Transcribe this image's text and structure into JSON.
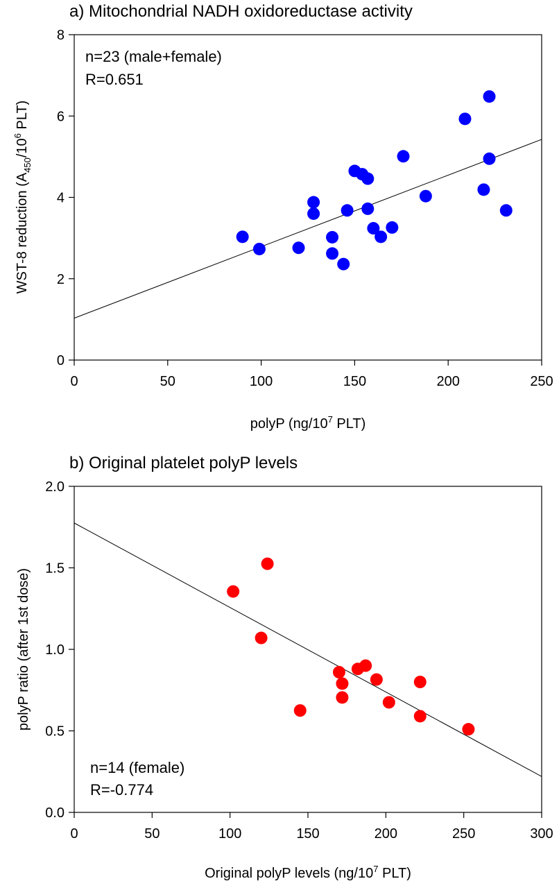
{
  "chart_data": [
    {
      "type": "scatter",
      "title": "a) Mitochondrial NADH oxidoreductase activity",
      "xlabel": {
        "main": "polyP (ng/10",
        "sup": "7",
        "tail": " PLT)"
      },
      "ylabel": {
        "main": "WST-8 reduction (A",
        "sub": "450",
        "mid": "/10",
        "sup": "6",
        "tail": " PLT)"
      },
      "xlim": [
        0,
        250
      ],
      "ylim": [
        0,
        8
      ],
      "xticks": [
        0,
        50,
        100,
        150,
        200,
        250
      ],
      "yticks": [
        0,
        2,
        4,
        6,
        8
      ],
      "annotations": [
        "n=23 (male+female)",
        "R=0.651"
      ],
      "marker_color": "#0000ff",
      "regression": {
        "intercept": 1.03,
        "slope": 0.01758
      },
      "series": [
        {
          "points": [
            [
              90,
              3.03
            ],
            [
              99,
              2.73
            ],
            [
              120,
              2.76
            ],
            [
              128,
              3.6
            ],
            [
              128,
              3.88
            ],
            [
              138,
              3.02
            ],
            [
              138,
              2.62
            ],
            [
              144,
              2.36
            ],
            [
              146,
              3.68
            ],
            [
              150,
              4.65
            ],
            [
              154,
              4.57
            ],
            [
              157,
              4.46
            ],
            [
              157,
              3.72
            ],
            [
              160,
              3.24
            ],
            [
              164,
              3.03
            ],
            [
              170,
              3.26
            ],
            [
              176,
              5.01
            ],
            [
              188,
              4.03
            ],
            [
              209,
              5.93
            ],
            [
              219,
              4.19
            ],
            [
              222,
              6.48
            ],
            [
              222,
              4.95
            ],
            [
              231,
              3.68
            ]
          ]
        }
      ]
    },
    {
      "type": "scatter",
      "title": "b) Original platelet polyP levels",
      "xlabel": {
        "main": "Original polyP levels (ng/10",
        "sup": "7",
        "tail": " PLT)"
      },
      "ylabel": {
        "main": "polyP ratio (after 1st dose)"
      },
      "xlim": [
        0,
        300
      ],
      "ylim": [
        0,
        2.0
      ],
      "xticks": [
        0,
        50,
        100,
        150,
        200,
        250,
        300
      ],
      "yticks": [
        "0.0",
        "0.5",
        "1.0",
        "1.5",
        "2.0"
      ],
      "annotations": [
        "n=14 (female)",
        "R=-0.774"
      ],
      "marker_color": "#ff0000",
      "regression": {
        "intercept": 1.775,
        "slope": -0.005183
      },
      "series": [
        {
          "points": [
            [
              102,
              1.355
            ],
            [
              124,
              1.525
            ],
            [
              120,
              1.07
            ],
            [
              145,
              0.625
            ],
            [
              170,
              0.86
            ],
            [
              172,
              0.79
            ],
            [
              172,
              0.705
            ],
            [
              182,
              0.88
            ],
            [
              187,
              0.9
            ],
            [
              194,
              0.815
            ],
            [
              202,
              0.675
            ],
            [
              222,
              0.8
            ],
            [
              222,
              0.59
            ],
            [
              253,
              0.51
            ]
          ]
        }
      ]
    }
  ]
}
